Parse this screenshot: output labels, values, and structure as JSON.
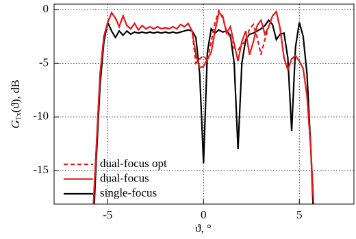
{
  "chart_data": {
    "type": "line",
    "x_label": "ϑ, °",
    "y_label": {
      "symbol": "G",
      "subscript": "Tx",
      "text": "(ϑ), dB"
    },
    "xlim": [
      -7.8,
      7.85
    ],
    "ylim": [
      -18.1,
      0.5
    ],
    "xticks": [
      -5,
      0,
      5
    ],
    "yticks": [
      0,
      -5,
      -10,
      -15
    ],
    "grid": true,
    "legend": "lower left",
    "x": [
      -5.8,
      -5.6,
      -5.4,
      -5.2,
      -5.0,
      -4.8,
      -4.6,
      -4.4,
      -4.2,
      -4.0,
      -3.8,
      -3.6,
      -3.4,
      -3.2,
      -3.0,
      -2.8,
      -2.6,
      -2.4,
      -2.2,
      -2.0,
      -1.8,
      -1.6,
      -1.4,
      -1.2,
      -1.0,
      -0.8,
      -0.6,
      -0.4,
      -0.2,
      0.0,
      0.2,
      0.4,
      0.6,
      0.8,
      1.0,
      1.2,
      1.4,
      1.6,
      1.8,
      2.0,
      2.2,
      2.4,
      2.6,
      2.8,
      3.0,
      3.2,
      3.4,
      3.6,
      3.8,
      4.0,
      4.2,
      4.4,
      4.6,
      4.8,
      5.0,
      5.2,
      5.4,
      5.6,
      5.8
    ],
    "series": [
      {
        "name": "dual-focus opt",
        "color": "#e41a1c",
        "dashed": true,
        "values": [
          -20,
          -13,
          -6,
          -2.5,
          -1.2,
          -0.3,
          -0.8,
          -1.6,
          -0.6,
          -1.5,
          -1.8,
          -1.3,
          -1.9,
          -1.5,
          -1.8,
          -1.6,
          -1.8,
          -1.6,
          -1.8,
          -1.7,
          -1.8,
          -1.6,
          -1.8,
          -1.4,
          -1.6,
          -1.3,
          -2.0,
          -5.0,
          -4.6,
          -4.3,
          -4.8,
          -3.0,
          -1.2,
          -0.1,
          -0.8,
          -2.0,
          -2.6,
          -3.6,
          -3.8,
          -3.2,
          -3.0,
          -1.8,
          -1.4,
          -2.6,
          -4.2,
          -2.8,
          -1.6,
          -0.6,
          -0.2,
          -1.8,
          -4.5,
          -5.6,
          -4.6,
          -4.3,
          -4.8,
          -5.5,
          -8,
          -13,
          -20
        ]
      },
      {
        "name": "dual-focus",
        "color": "#e41a1c",
        "dashed": false,
        "values": [
          -20,
          -13,
          -6,
          -2.5,
          -1.2,
          -0.3,
          -0.8,
          -1.6,
          -0.6,
          -1.5,
          -1.8,
          -1.3,
          -1.9,
          -1.5,
          -1.8,
          -1.6,
          -1.8,
          -1.6,
          -1.8,
          -1.7,
          -1.8,
          -1.6,
          -1.8,
          -1.4,
          -1.6,
          -1.3,
          -2.0,
          -4.2,
          -5.4,
          -5.3,
          -4.6,
          -4.0,
          -2.0,
          -0.3,
          -0.6,
          -2.2,
          -1.6,
          -3.2,
          -4.8,
          -3.0,
          -2.0,
          -4.2,
          -3.0,
          -1.5,
          -1.0,
          -2.3,
          -1.6,
          -0.6,
          -0.2,
          -1.8,
          -4.5,
          -5.6,
          -4.6,
          -4.3,
          -4.8,
          -5.5,
          -8,
          -13,
          -20
        ]
      },
      {
        "name": "single-focus",
        "color": "#000000",
        "dashed": false,
        "values": [
          -22,
          -14,
          -7,
          -3,
          -1.2,
          -2.0,
          -2.6,
          -2.0,
          -2.4,
          -2.0,
          -2.3,
          -2.1,
          -2.2,
          -2.1,
          -2.2,
          -2.1,
          -2.2,
          -2.1,
          -2.2,
          -2.1,
          -2.2,
          -2.1,
          -2.2,
          -2.1,
          -2.0,
          -1.9,
          -2.0,
          -2.6,
          -6,
          -14.3,
          -4,
          -1.8,
          -2.2,
          -1.9,
          -2.1,
          -2.0,
          -2.4,
          -5,
          -13,
          -5,
          -2.8,
          -2.3,
          -2.2,
          -2.0,
          -1.8,
          -1.5,
          -1.0,
          -1.4,
          -2.8,
          -2.3,
          -2.2,
          -4.5,
          -11.3,
          -3.5,
          -1.2,
          -2.5,
          -6,
          -13,
          -22
        ]
      }
    ]
  }
}
